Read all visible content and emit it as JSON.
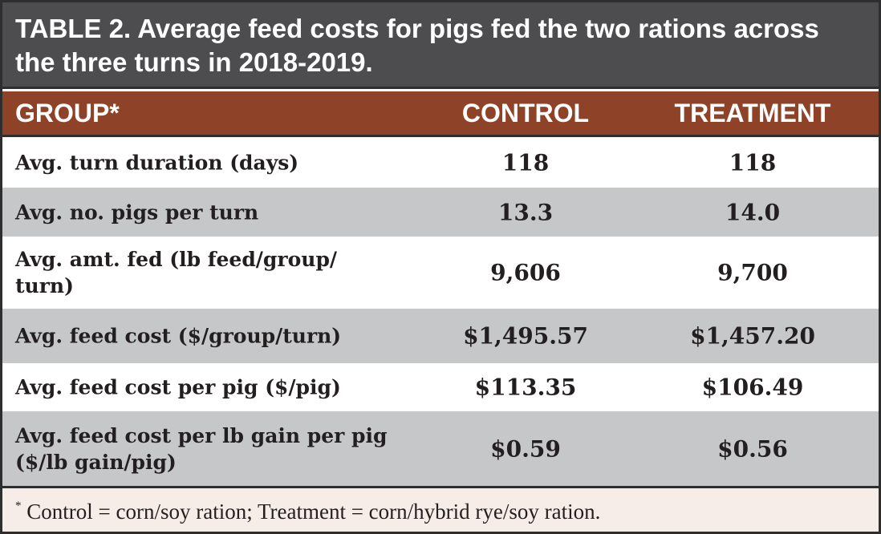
{
  "title": {
    "lead": "TABLE 2.",
    "text": "Average feed costs for pigs fed the two rations across the three turns in 2018-2019."
  },
  "columns": [
    "GROUP*",
    "CONTROL",
    "TREATMENT"
  ],
  "rows": [
    {
      "label": "Avg. turn duration (days)",
      "control": "118",
      "treatment": "118"
    },
    {
      "label": "Avg. no. pigs per turn",
      "control": "13.3",
      "treatment": "14.0"
    },
    {
      "label": "Avg. amt. fed (lb feed/group/ turn)",
      "control": "9,606",
      "treatment": "9,700"
    },
    {
      "label": "Avg. feed cost ($/group/turn)",
      "control": "$1,495.57",
      "treatment": "$1,457.20"
    },
    {
      "label": "Avg. feed cost per pig ($/pig)",
      "control": "$113.35",
      "treatment": "$106.49"
    },
    {
      "label": "Avg. feed cost per lb gain per pig ($/lb gain/pig)",
      "control": "$0.59",
      "treatment": "$0.56"
    }
  ],
  "footnote": {
    "mark": "*",
    "text": "Control = corn/soy ration; Treatment = corn/hybrid rye/soy ration."
  }
}
